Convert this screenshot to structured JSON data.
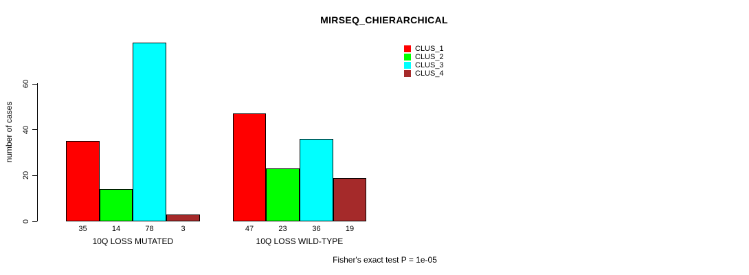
{
  "chart_data": {
    "type": "bar",
    "title": "MIRSEQ_CHIERARCHICAL",
    "ylabel": "number of cases",
    "xlabel": "",
    "categories": [
      "10Q LOSS MUTATED",
      "10Q LOSS WILD-TYPE"
    ],
    "series": [
      {
        "name": "CLUS_1",
        "color": "#ff0000",
        "values": [
          35,
          47
        ]
      },
      {
        "name": "CLUS_2",
        "color": "#00ff00",
        "values": [
          14,
          23
        ]
      },
      {
        "name": "CLUS_3",
        "color": "#00ffff",
        "values": [
          78,
          36
        ]
      },
      {
        "name": "CLUS_4",
        "color": "#a52a2a",
        "values": [
          3,
          19
        ]
      }
    ],
    "yticks": [
      0,
      20,
      40,
      60
    ],
    "ylim": [
      0,
      60
    ],
    "grid": false,
    "legend_position": "top-right",
    "legend_entries": [
      "CLUS_1",
      "CLUS_2",
      "CLUS_3",
      "CLUS_4"
    ],
    "bar_value_labels_shown": true,
    "annotation": "Fisher's exact test P = 1e-05"
  }
}
